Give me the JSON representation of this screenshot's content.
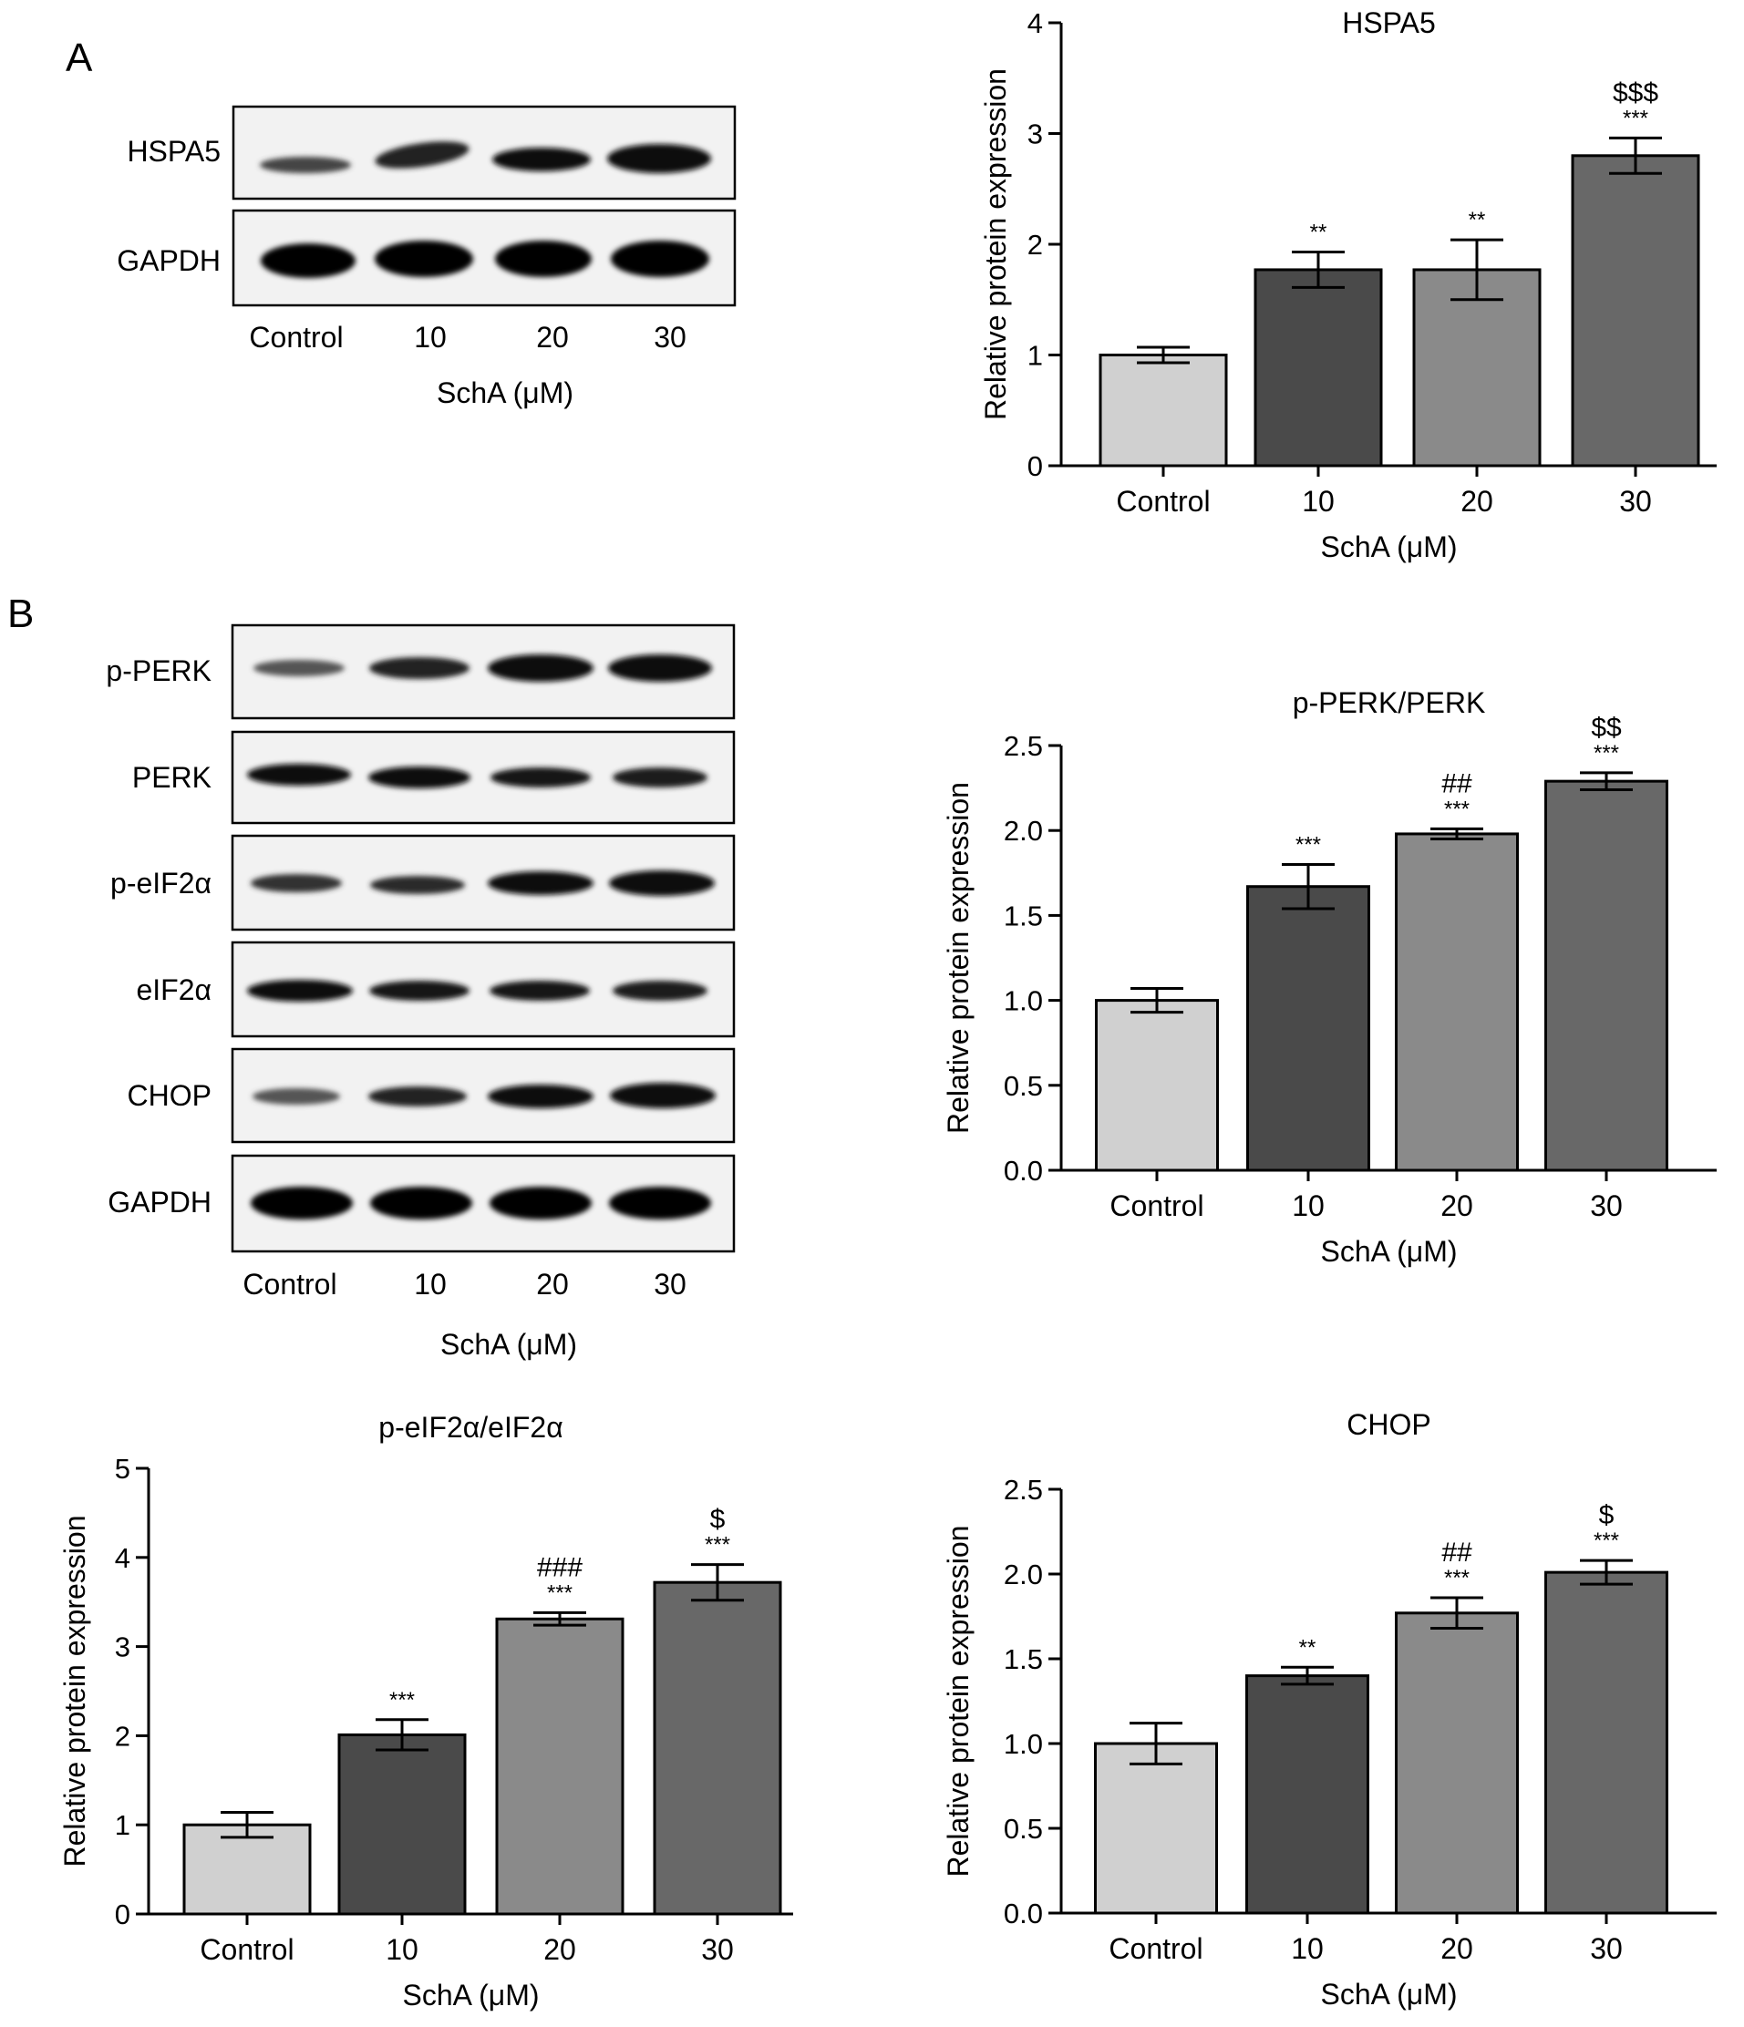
{
  "panels": {
    "a": "A",
    "b": "B"
  },
  "blot_a": {
    "rows": [
      "HSPA5",
      "GAPDH"
    ],
    "lanes": [
      "Control",
      "10",
      "20",
      "30"
    ],
    "xlabel": "SchA (μM)"
  },
  "blot_b": {
    "rows": [
      "p-PERK",
      "PERK",
      "p-eIF2α",
      "eIF2α",
      "CHOP",
      "GAPDH"
    ],
    "lanes": [
      "Control",
      "10",
      "20",
      "30"
    ],
    "xlabel": "SchA (μM)"
  },
  "colors": {
    "bar_control": "#d0d0d0",
    "bar_10": "#4a4a4a",
    "bar_20": "#8a8a8a",
    "bar_30": "#686868"
  },
  "chart_data": [
    {
      "type": "bar",
      "title": "HSPA5",
      "xlabel": "SchA (μM)",
      "ylabel": "Relative protein expression",
      "categories": [
        "Control",
        "10",
        "20",
        "30"
      ],
      "values": [
        1.0,
        1.77,
        1.77,
        2.8
      ],
      "errors": [
        0.07,
        0.16,
        0.27,
        0.16
      ],
      "ylim": [
        0,
        4
      ],
      "yticks": [
        "0",
        "1",
        "2",
        "3",
        "4"
      ],
      "significance": [
        "",
        "**",
        "**",
        "***"
      ],
      "significance2": [
        "",
        "",
        "",
        "$$$"
      ]
    },
    {
      "type": "bar",
      "title": "p-PERK/PERK",
      "xlabel": "SchA (μM)",
      "ylabel": "Relative protein expression",
      "categories": [
        "Control",
        "10",
        "20",
        "30"
      ],
      "values": [
        1.0,
        1.67,
        1.98,
        2.29
      ],
      "errors": [
        0.07,
        0.13,
        0.03,
        0.05
      ],
      "ylim": [
        0,
        2.5
      ],
      "yticks": [
        "0.0",
        "0.5",
        "1.0",
        "1.5",
        "2.0",
        "2.5"
      ],
      "significance": [
        "",
        "***",
        "***",
        "***"
      ],
      "significance2": [
        "",
        "",
        "##",
        "$$"
      ]
    },
    {
      "type": "bar",
      "title": "p-eIF2α/eIF2α",
      "xlabel": "SchA (μM)",
      "ylabel": "Relative protein expression",
      "categories": [
        "Control",
        "10",
        "20",
        "30"
      ],
      "values": [
        1.0,
        2.01,
        3.31,
        3.72
      ],
      "errors": [
        0.14,
        0.17,
        0.07,
        0.2
      ],
      "ylim": [
        0,
        5
      ],
      "yticks": [
        "0",
        "1",
        "2",
        "3",
        "4",
        "5"
      ],
      "significance": [
        "",
        "***",
        "***",
        "***"
      ],
      "significance2": [
        "",
        "",
        "###",
        "$"
      ]
    },
    {
      "type": "bar",
      "title": "CHOP",
      "xlabel": "SchA (μM)",
      "ylabel": "Relative protein expression",
      "categories": [
        "Control",
        "10",
        "20",
        "30"
      ],
      "values": [
        1.0,
        1.4,
        1.77,
        2.01
      ],
      "errors": [
        0.12,
        0.05,
        0.09,
        0.07
      ],
      "ylim": [
        0,
        2.5
      ],
      "yticks": [
        "0.0",
        "0.5",
        "1.0",
        "1.5",
        "2.0",
        "2.5"
      ],
      "significance": [
        "",
        "**",
        "***",
        "***"
      ],
      "significance2": [
        "",
        "",
        "##",
        "$"
      ]
    }
  ]
}
